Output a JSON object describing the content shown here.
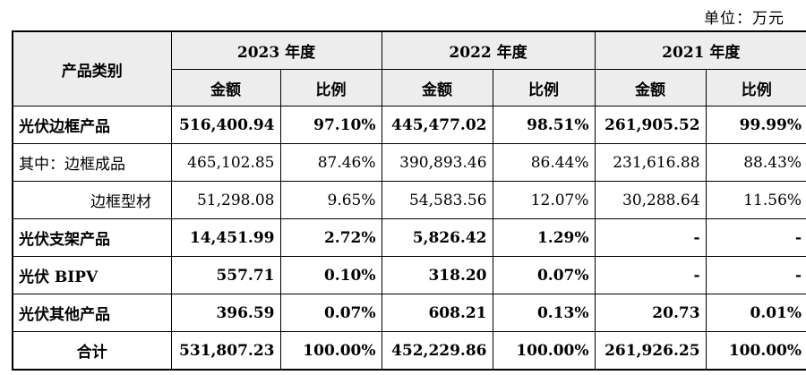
{
  "unit": "单位：万元",
  "header": {
    "category": "产品类别",
    "years": [
      "2023 年度",
      "2022 年度",
      "2021 年度"
    ],
    "sub": [
      "金额",
      "比例"
    ]
  },
  "rows": [
    {
      "label": "光伏边框产品",
      "bold": true,
      "style": "",
      "cells": [
        "516,400.94",
        "97.10%",
        "445,477.02",
        "98.51%",
        "261,905.52",
        "99.99%"
      ]
    },
    {
      "label": "其中：边框成品",
      "bold": false,
      "style": "",
      "cells": [
        "465,102.85",
        "87.46%",
        "390,893.46",
        "86.44%",
        "231,616.88",
        "88.43%"
      ]
    },
    {
      "label": "边框型材",
      "bold": false,
      "style": "sub2",
      "cells": [
        "51,298.08",
        "9.65%",
        "54,583.56",
        "12.07%",
        "30,288.64",
        "11.56%"
      ]
    },
    {
      "label": "光伏支架产品",
      "bold": true,
      "style": "",
      "cells": [
        "14,451.99",
        "2.72%",
        "5,826.42",
        "1.29%",
        "-",
        "-"
      ]
    },
    {
      "label": "光伏 BIPV",
      "bold": true,
      "style": "",
      "cells": [
        "557.71",
        "0.10%",
        "318.20",
        "0.07%",
        "-",
        "-"
      ]
    },
    {
      "label": "光伏其他产品",
      "bold": true,
      "style": "",
      "cells": [
        "396.59",
        "0.07%",
        "608.21",
        "0.13%",
        "20.73",
        "0.01%"
      ]
    },
    {
      "label": "合计",
      "bold": true,
      "style": "total",
      "cells": [
        "531,807.23",
        "100.00%",
        "452,229.86",
        "100.00%",
        "261,926.25",
        "100.00%"
      ]
    }
  ]
}
